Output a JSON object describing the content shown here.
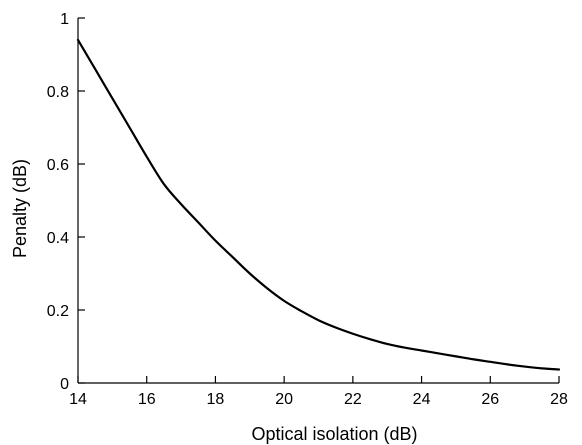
{
  "chart_data": {
    "type": "line",
    "title": "",
    "xlabel": "Optical isolation (dB)",
    "ylabel": "Penalty (dB)",
    "xlim": [
      14,
      28
    ],
    "ylim": [
      0,
      1
    ],
    "x_ticks": [
      14,
      16,
      18,
      20,
      22,
      24,
      26,
      28
    ],
    "x_tick_labels": [
      "14",
      "16",
      "18",
      "20",
      "22",
      "24",
      "26",
      "28"
    ],
    "y_ticks": [
      0,
      0.2,
      0.4,
      0.6,
      0.8,
      1
    ],
    "y_tick_labels": [
      "0",
      "0.2",
      "0.4",
      "0.6",
      "0.8",
      "1"
    ],
    "grid": false,
    "legend": "none",
    "line_color": "#000000",
    "series": [
      {
        "x": [
          14,
          14.5,
          15,
          15.5,
          16,
          16.5,
          17,
          17.5,
          18,
          18.5,
          19,
          19.5,
          20,
          20.5,
          21,
          21.5,
          22,
          22.5,
          23,
          23.5,
          24,
          24.5,
          25,
          25.5,
          26,
          26.5,
          27,
          27.5,
          28
        ],
        "values": [
          0.94,
          0.86,
          0.78,
          0.7,
          0.62,
          0.545,
          0.49,
          0.44,
          0.39,
          0.345,
          0.3,
          0.26,
          0.225,
          0.197,
          0.172,
          0.152,
          0.135,
          0.12,
          0.107,
          0.097,
          0.089,
          0.081,
          0.073,
          0.065,
          0.058,
          0.051,
          0.045,
          0.04,
          0.037
        ]
      }
    ]
  }
}
